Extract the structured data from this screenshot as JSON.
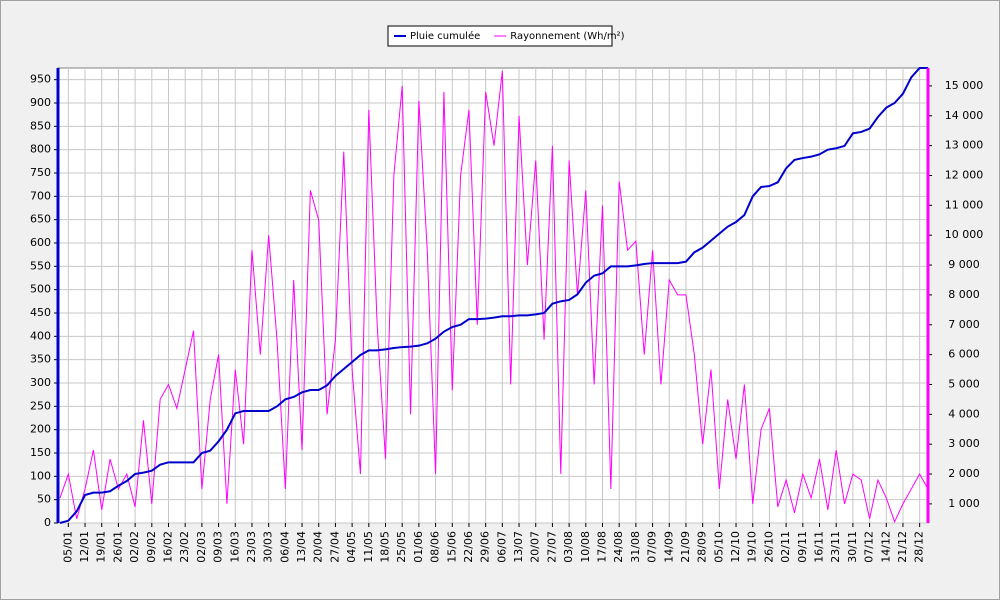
{
  "chart_data": {
    "type": "line",
    "categories": [
      null,
      "05/01",
      null,
      "12/01",
      null,
      "19/01",
      null,
      "26/01",
      null,
      "02/02",
      null,
      "09/02",
      null,
      "16/02",
      null,
      "23/02",
      null,
      "02/03",
      null,
      "09/03",
      null,
      "16/03",
      null,
      "23/03",
      null,
      "30/03",
      null,
      "06/04",
      null,
      "13/04",
      null,
      "20/04",
      null,
      "27/04",
      null,
      "04/05",
      null,
      "11/05",
      null,
      "18/05",
      null,
      "25/05",
      null,
      "01/06",
      null,
      "08/06",
      null,
      "15/06",
      null,
      "22/06",
      null,
      "29/06",
      null,
      "06/07",
      null,
      "13/07",
      null,
      "20/07",
      null,
      "27/07",
      null,
      "03/08",
      null,
      "10/08",
      null,
      "17/08",
      null,
      "24/08",
      null,
      "31/08",
      null,
      "07/09",
      null,
      "14/09",
      null,
      "21/09",
      null,
      "28/09",
      null,
      "05/10",
      null,
      "12/10",
      null,
      "19/10",
      null,
      "26/10",
      null,
      "02/11",
      null,
      "09/11",
      null,
      "16/11",
      null,
      "23/11",
      null,
      "30/11",
      null,
      "07/12",
      null,
      "14/12",
      null,
      "21/12",
      null,
      "28/12",
      null
    ],
    "series": [
      {
        "name": "Pluie cumulée",
        "color": "#0000cc",
        "values": [
          0,
          5,
          25,
          60,
          65,
          65,
          68,
          80,
          90,
          105,
          108,
          112,
          125,
          130,
          130,
          130,
          130,
          150,
          155,
          175,
          200,
          235,
          240,
          240,
          240,
          240,
          250,
          265,
          270,
          280,
          285,
          285,
          295,
          315,
          330,
          345,
          360,
          370,
          370,
          372,
          375,
          377,
          378,
          380,
          385,
          395,
          410,
          420,
          425,
          437,
          437,
          438,
          440,
          443,
          443,
          445,
          445,
          447,
          450,
          470,
          475,
          478,
          490,
          515,
          530,
          535,
          550,
          550,
          550,
          552,
          555,
          557,
          557,
          557,
          557,
          560,
          580,
          590,
          605,
          620,
          635,
          645,
          660,
          700,
          720,
          722,
          730,
          760,
          778,
          782,
          785,
          790,
          800,
          803,
          808,
          835,
          838,
          845,
          870,
          890,
          900,
          920,
          955,
          975,
          975
        ]
      },
      {
        "name": "Rayonnement (Wh/m²)",
        "color": "#ff00ff",
        "axis": "y2",
        "values": [
          1200,
          2000,
          500,
          1500,
          2800,
          800,
          2500,
          1500,
          2000,
          900,
          3800,
          1000,
          4500,
          5000,
          4200,
          5500,
          6800,
          1500,
          4500,
          6000,
          1000,
          5500,
          3000,
          9500,
          6000,
          10000,
          6500,
          1500,
          8500,
          2800,
          11500,
          10500,
          4000,
          6500,
          12800,
          5500,
          2000,
          14200,
          7000,
          2500,
          12000,
          15000,
          4000,
          14500,
          9500,
          2000,
          14800,
          4800,
          12000,
          14200,
          7000,
          14800,
          13000,
          15500,
          5000,
          14000,
          9000,
          12500,
          6500,
          13000,
          2000,
          12500,
          8000,
          11500,
          5000,
          11000,
          1500,
          11800,
          9500,
          9800,
          6000,
          9500,
          5000,
          8500,
          8000,
          8000,
          6000,
          3000,
          5500,
          1500,
          4500,
          2500,
          5000,
          1000,
          3500,
          4200,
          900,
          1800,
          700,
          2000,
          1200,
          2500,
          800,
          2800,
          1000,
          2000,
          1800,
          500,
          1800,
          1200,
          400,
          1000,
          1500,
          2000,
          1500
        ]
      }
    ],
    "ylim": [
      0,
      975
    ],
    "yticks": [
      0,
      50,
      100,
      150,
      200,
      250,
      300,
      350,
      400,
      450,
      500,
      550,
      600,
      650,
      700,
      750,
      800,
      850,
      900,
      950
    ],
    "y2lim": [
      360,
      15600
    ],
    "y2ticks": [
      {
        "value": 1000,
        "label": "1 000"
      },
      {
        "value": 2000,
        "label": "2 000"
      },
      {
        "value": 3000,
        "label": "3 000"
      },
      {
        "value": 4000,
        "label": "4 000"
      },
      {
        "value": 5000,
        "label": "5 000"
      },
      {
        "value": 6000,
        "label": "6 000"
      },
      {
        "value": 7000,
        "label": "7 000"
      },
      {
        "value": 8000,
        "label": "8 000"
      },
      {
        "value": 9000,
        "label": "9 000"
      },
      {
        "value": 10000,
        "label": "10 000"
      },
      {
        "value": 11000,
        "label": "11 000"
      },
      {
        "value": 12000,
        "label": "12 000"
      },
      {
        "value": 13000,
        "label": "13 000"
      },
      {
        "value": 14000,
        "label": "14 000"
      },
      {
        "value": 15000,
        "label": "15 000"
      }
    ],
    "grid": true,
    "legend": "top"
  }
}
